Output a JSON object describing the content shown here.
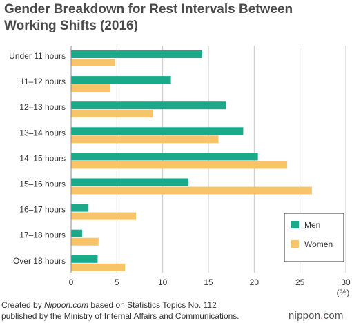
{
  "title_line1": "Gender Breakdown for Rest Intervals Between",
  "title_line2": "Working Shifts (2016)",
  "footer": {
    "line1_prefix": "Created by ",
    "line1_source": "Nippon.com",
    "line1_suffix": " based on Statistics Topics No. 112",
    "line2": "published by the Ministry of Internal Affairs and Communications."
  },
  "brand": {
    "name_a": "nippon",
    "name_dot": ".",
    "name_b": "com"
  },
  "colors": {
    "men": "#1aaa8a",
    "women": "#f8c46a",
    "grid": "#c8c8c8",
    "axis": "#888888"
  },
  "chart_data": {
    "type": "bar",
    "orientation": "horizontal",
    "categories": [
      "Under 11 hours",
      "11–12 hours",
      "12–13 hours",
      "13–14 hours",
      "14–15 hours",
      "15–16 hours",
      "16–17 hours",
      "17–18 hours",
      "Over 18 hours"
    ],
    "series": [
      {
        "name": "Men",
        "values": [
          14.3,
          10.9,
          16.9,
          18.8,
          20.4,
          12.8,
          1.9,
          1.2,
          2.9
        ]
      },
      {
        "name": "Women",
        "values": [
          4.8,
          4.3,
          8.9,
          16.1,
          23.6,
          26.3,
          7.1,
          3.0,
          5.9
        ]
      }
    ],
    "xlim": [
      0,
      30
    ],
    "xticks": [
      0,
      5,
      10,
      15,
      20,
      25,
      30
    ],
    "x_unit": "(%)",
    "legend_position": "bottom-right",
    "grid": true
  }
}
